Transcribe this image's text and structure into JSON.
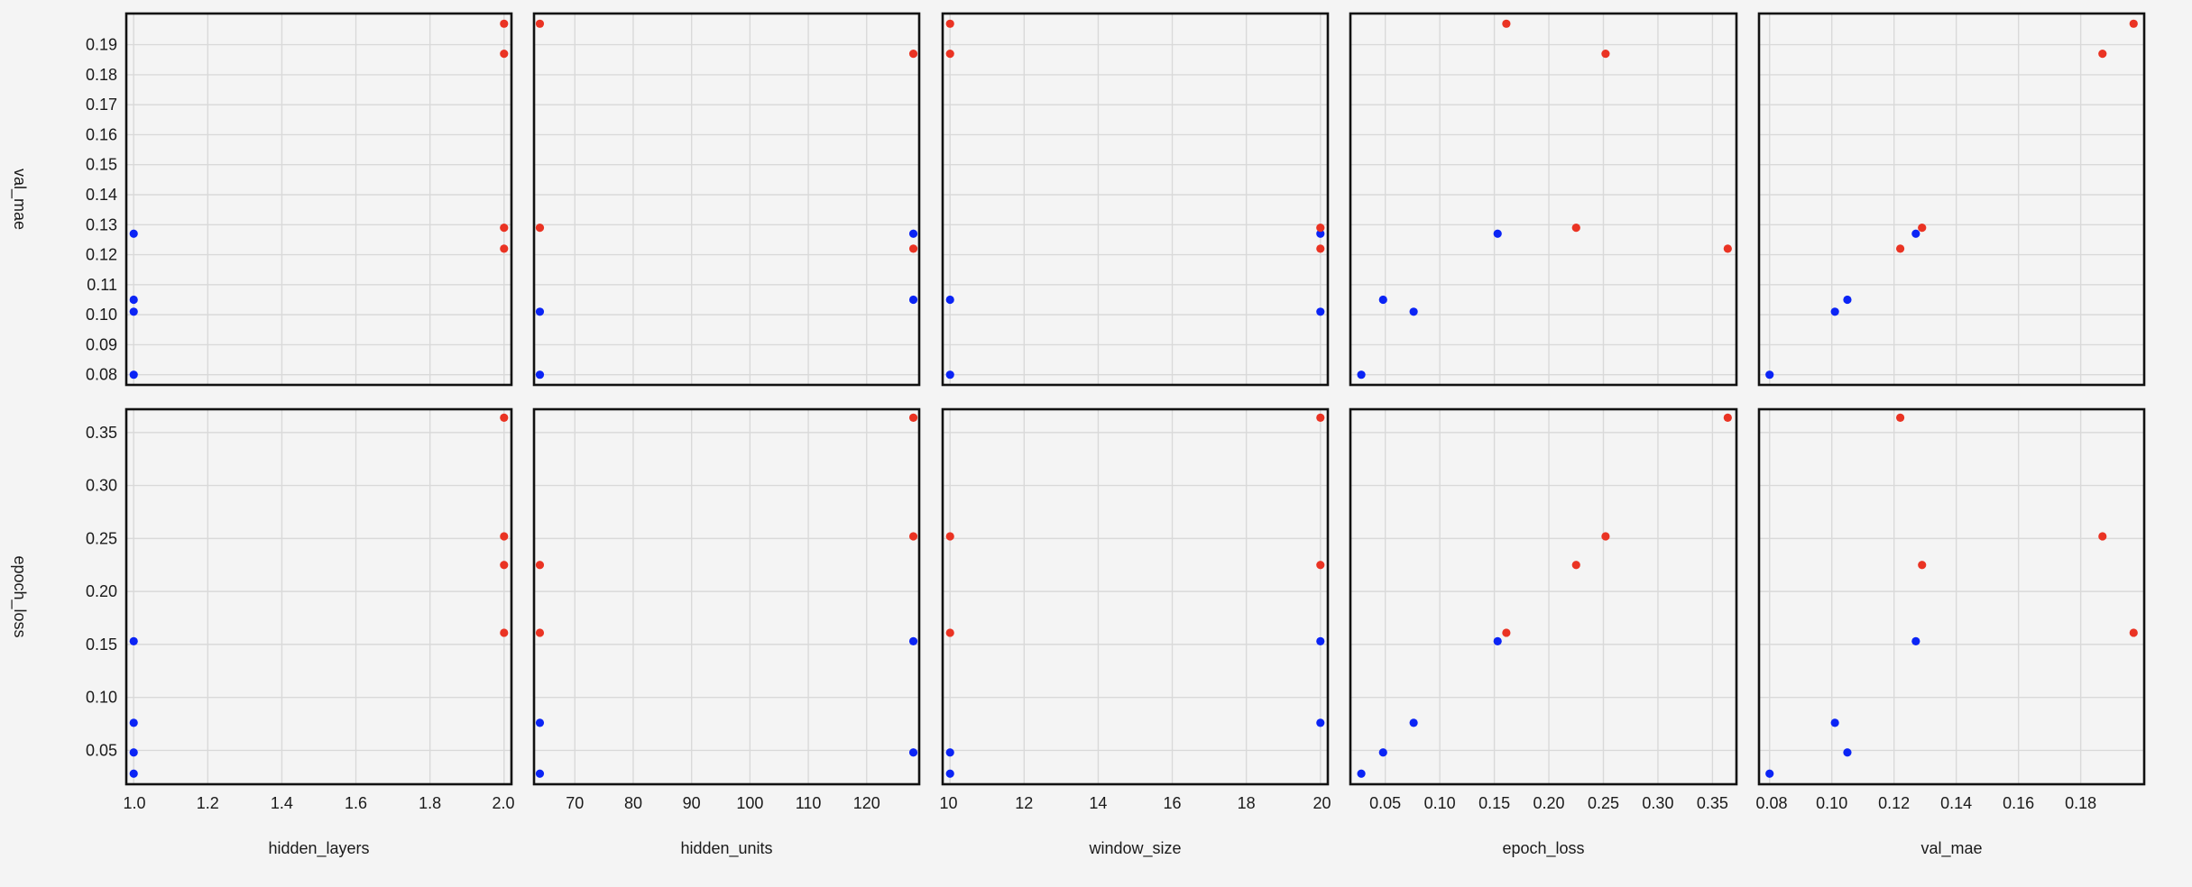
{
  "chart_data": {
    "type": "scatter",
    "chart_kind": "scatter-matrix",
    "legend": "none",
    "grid": true,
    "colors": {
      "group_a": "#0b24f5",
      "group_b": "#ea3323"
    },
    "x_dims": [
      {
        "label": "hidden_layers",
        "range": [
          0.98,
          2.02
        ],
        "ticks": [
          1.0,
          1.2,
          1.4,
          1.6,
          1.8,
          2.0
        ],
        "tick_labels": [
          "1.0",
          "1.2",
          "1.4",
          "1.6",
          "1.8",
          "2.0"
        ],
        "decimals": 1
      },
      {
        "label": "hidden_units",
        "range": [
          63,
          129
        ],
        "ticks": [
          70,
          80,
          90,
          100,
          110,
          120
        ],
        "tick_labels": [
          "70",
          "80",
          "90",
          "100",
          "110",
          "120"
        ],
        "decimals": 0
      },
      {
        "label": "window_size",
        "range": [
          9.8,
          20.2
        ],
        "ticks": [
          10,
          12,
          14,
          16,
          18,
          20
        ],
        "tick_labels": [
          "10",
          "12",
          "14",
          "16",
          "18",
          "20"
        ],
        "decimals": 0
      },
      {
        "label": "epoch_loss",
        "range": [
          0.018,
          0.372
        ],
        "ticks": [
          0.05,
          0.1,
          0.15,
          0.2,
          0.25,
          0.3,
          0.35
        ],
        "tick_labels": [
          "0.05",
          "0.10",
          "0.15",
          "0.20",
          "0.25",
          "0.30",
          "0.35"
        ],
        "decimals": 2
      },
      {
        "label": "val_mae",
        "range": [
          0.0766,
          0.2004
        ],
        "ticks": [
          0.08,
          0.1,
          0.12,
          0.14,
          0.16,
          0.18
        ],
        "tick_labels": [
          "0.08",
          "0.10",
          "0.12",
          "0.14",
          "0.16",
          "0.18"
        ],
        "decimals": 2
      }
    ],
    "y_dims": [
      {
        "label": "val_mae",
        "range": [
          0.0766,
          0.2004
        ],
        "ticks": [
          0.08,
          0.09,
          0.1,
          0.11,
          0.12,
          0.13,
          0.14,
          0.15,
          0.16,
          0.17,
          0.18,
          0.19
        ],
        "tick_labels": [
          "0.08",
          "0.09",
          "0.10",
          "0.11",
          "0.12",
          "0.13",
          "0.14",
          "0.15",
          "0.16",
          "0.17",
          "0.18",
          "0.19"
        ]
      },
      {
        "label": "epoch_loss",
        "range": [
          0.018,
          0.372
        ],
        "ticks": [
          0.05,
          0.1,
          0.15,
          0.2,
          0.25,
          0.3,
          0.35
        ],
        "tick_labels": [
          "0.05",
          "0.10",
          "0.15",
          "0.20",
          "0.25",
          "0.30",
          "0.35"
        ]
      }
    ],
    "points": [
      {
        "group": "group_a",
        "hidden_layers": 1,
        "hidden_units": 64,
        "window_size": 10,
        "epoch_loss": 0.028,
        "val_mae": 0.08
      },
      {
        "group": "group_a",
        "hidden_layers": 1,
        "hidden_units": 128,
        "window_size": 10,
        "epoch_loss": 0.048,
        "val_mae": 0.105
      },
      {
        "group": "group_a",
        "hidden_layers": 1,
        "hidden_units": 64,
        "window_size": 20,
        "epoch_loss": 0.076,
        "val_mae": 0.101
      },
      {
        "group": "group_a",
        "hidden_layers": 1,
        "hidden_units": 128,
        "window_size": 20,
        "epoch_loss": 0.153,
        "val_mae": 0.127
      },
      {
        "group": "group_b",
        "hidden_layers": 2,
        "hidden_units": 64,
        "window_size": 10,
        "epoch_loss": 0.161,
        "val_mae": 0.197
      },
      {
        "group": "group_b",
        "hidden_layers": 2,
        "hidden_units": 128,
        "window_size": 10,
        "epoch_loss": 0.252,
        "val_mae": 0.187
      },
      {
        "group": "group_b",
        "hidden_layers": 2,
        "hidden_units": 64,
        "window_size": 20,
        "epoch_loss": 0.225,
        "val_mae": 0.129
      },
      {
        "group": "group_b",
        "hidden_layers": 2,
        "hidden_units": 128,
        "window_size": 20,
        "epoch_loss": 0.364,
        "val_mae": 0.122
      }
    ]
  }
}
